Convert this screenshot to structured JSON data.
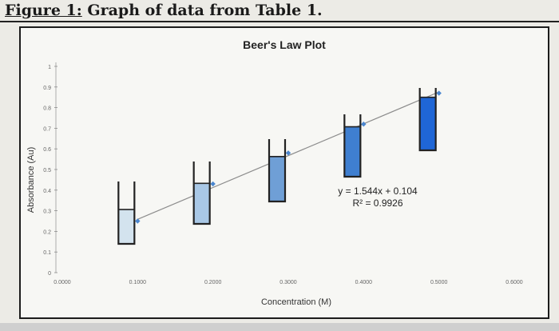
{
  "caption": {
    "label": "Figure 1:",
    "text": " Graph of data from Table 1."
  },
  "chart_data": {
    "type": "scatter",
    "title": "Beer's Law Plot",
    "xlabel": "Concentration (M)",
    "ylabel": "Absorbance (Au)",
    "xlim": [
      0,
      0.6
    ],
    "ylim": [
      0,
      1
    ],
    "x_ticks": [
      "0.0000",
      "0.1000",
      "0.2000",
      "0.3000",
      "0.4000",
      "0.5000",
      "0.6000"
    ],
    "y_ticks": [
      "0",
      "0.1",
      "0.2",
      "0.3",
      "0.4",
      "0.5",
      "0.6",
      "0.7",
      "0.8",
      "0.9",
      "1"
    ],
    "grid": false,
    "points": [
      {
        "x": 0.1,
        "y": 0.25
      },
      {
        "x": 0.2,
        "y": 0.43
      },
      {
        "x": 0.3,
        "y": 0.58
      },
      {
        "x": 0.4,
        "y": 0.72
      },
      {
        "x": 0.5,
        "y": 0.87
      }
    ],
    "trendline": {
      "slope": 1.544,
      "intercept": 0.104,
      "equation": "y = 1.544x + 0.104",
      "r_squared": "R² = 0.9926"
    },
    "cuvettes": [
      {
        "fill": 0.55,
        "color": "#d3e3ee"
      },
      {
        "fill": 0.65,
        "color": "#a9c8e6"
      },
      {
        "fill": 0.72,
        "color": "#6f9fd6"
      },
      {
        "fill": 0.8,
        "color": "#3f7fd0"
      },
      {
        "fill": 0.85,
        "color": "#1f66d6"
      }
    ],
    "colors": {
      "marker": "#4a86cf",
      "trendline": "#8c8c8c",
      "cuvette_outline": "#222222"
    }
  }
}
